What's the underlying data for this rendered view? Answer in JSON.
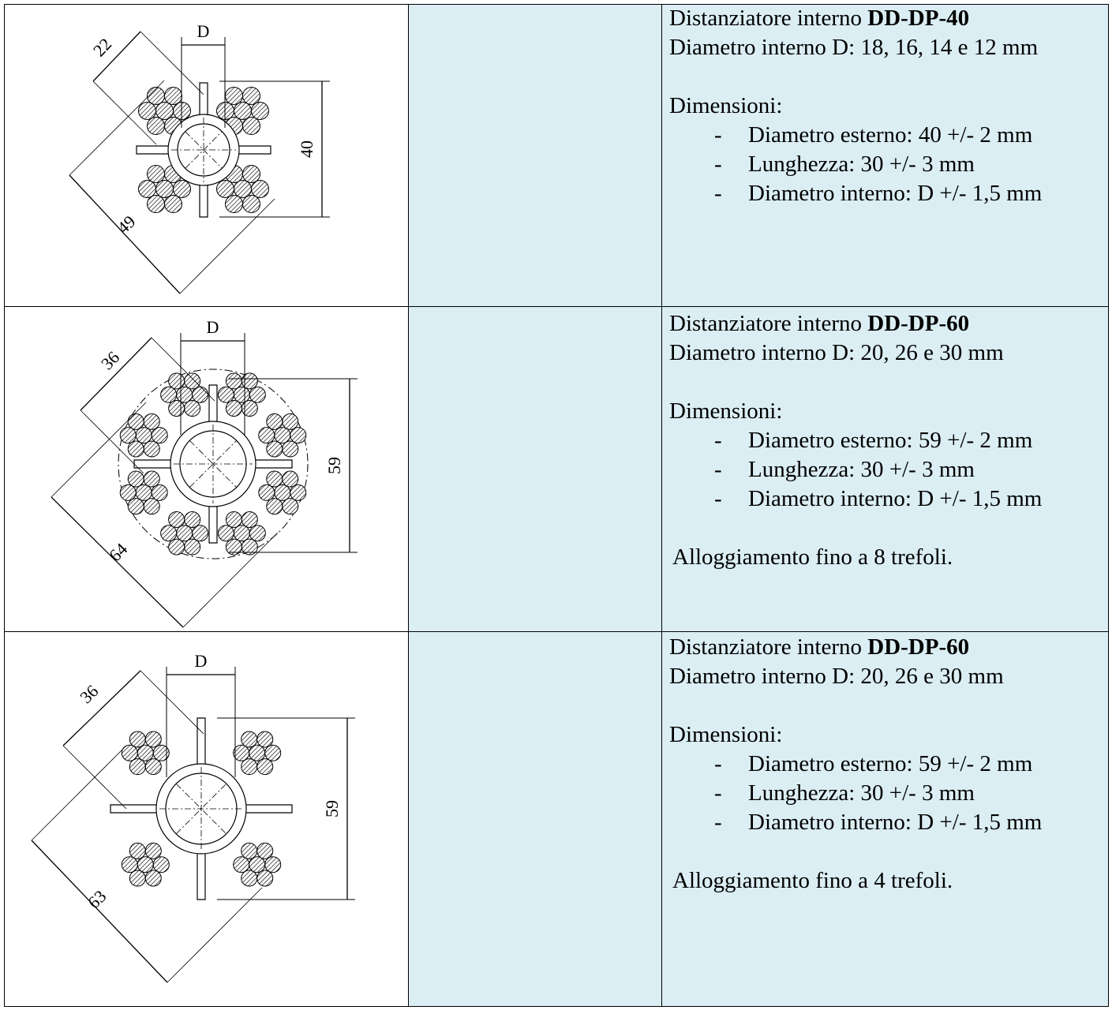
{
  "rows": [
    {
      "drawing": {
        "d": "D",
        "diag_small": "22",
        "height": "40",
        "diag_large": "49"
      },
      "title_prefix": "Distanziatore interno",
      "model": "DD-DP-40",
      "inner_diameter": "Diametro interno D: 18, 16, 14 e 12 mm",
      "heading": "Dimensioni:",
      "bullets": [
        {
          "marker": "-",
          "text": "Diametro esterno: 40 +/- 2 mm"
        },
        {
          "marker": "-",
          "text": "Lunghezza: 30 +/- 3 mm"
        },
        {
          "marker": "-",
          "text": "Diametro interno: D +/- 1,5 mm"
        }
      ]
    },
    {
      "drawing": {
        "d": "D",
        "diag_small": "36",
        "height": "59",
        "diag_large": "64"
      },
      "title_prefix": "Distanziatore interno",
      "model": "DD-DP-60",
      "inner_diameter": "Diametro interno D: 20, 26 e 30 mm",
      "heading": "Dimensioni:",
      "bullets": [
        {
          "marker": "-",
          "text": "Diametro esterno: 59 +/- 2 mm"
        },
        {
          "marker": "-",
          "text": "Lunghezza: 30 +/- 3 mm"
        },
        {
          "marker": "-",
          "text": "Diametro interno: D +/- 1,5 mm"
        }
      ],
      "note": "Alloggiamento fino a 8 trefoli."
    },
    {
      "drawing": {
        "d": "D",
        "diag_small": "36",
        "height": "59",
        "diag_large": "63"
      },
      "title_prefix": "Distanziatore interno",
      "model": "DD-DP-60",
      "inner_diameter": "Diametro interno D: 20, 26 e 30 mm",
      "heading": "Dimensioni:",
      "bullets": [
        {
          "marker": "-",
          "text": "Diametro esterno: 59 +/- 2 mm"
        },
        {
          "marker": "-",
          "text": "Lunghezza: 30 +/- 3 mm"
        },
        {
          "marker": "-",
          "text": "Diametro interno: D +/- 1,5 mm"
        }
      ],
      "note": "Alloggiamento fino a 4 trefoli."
    }
  ]
}
